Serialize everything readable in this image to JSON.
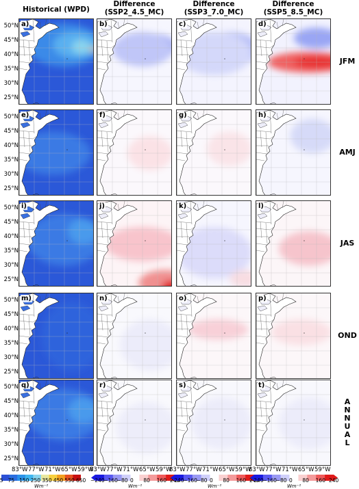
{
  "chart_data": {
    "type": "heatmap",
    "columns": [
      {
        "key": "hist",
        "title": "Historical (WPD)"
      },
      {
        "key": "s245",
        "title": "Difference\n(SSP2_4.5_MC)"
      },
      {
        "key": "s370",
        "title": "Difference\n(SSP3_7.0_MC)"
      },
      {
        "key": "s585",
        "title": "Difference\n(SSP5_8.5_MC)"
      }
    ],
    "rows": [
      {
        "season": "JFM",
        "labels": [
          "a)",
          "b)",
          "c)",
          "d)"
        ]
      },
      {
        "season": "AMJ",
        "labels": [
          "e)",
          "f)",
          "g)",
          "h)"
        ]
      },
      {
        "season": "JAS",
        "labels": [
          "i)",
          "j)",
          "k)",
          "l)"
        ]
      },
      {
        "season": "OND",
        "labels": [
          "m)",
          "n)",
          "o)",
          "p)"
        ]
      },
      {
        "season": "A\nN\nN\nU\nA\nL",
        "labels": [
          "q)",
          "r)",
          "s)",
          "t)"
        ]
      }
    ],
    "lat_ticks": [
      "50°N",
      "45°N",
      "40°N",
      "35°N",
      "30°N",
      "25°N"
    ],
    "lon_ticks": [
      "83°W",
      "77°W",
      "71°W",
      "65°W",
      "59°W"
    ],
    "colorbars": [
      {
        "ticks": [
          "25",
          "75",
          "150",
          "250",
          "350",
          "450",
          "550",
          "650"
        ],
        "unit": "Wm⁻²",
        "colors": [
          "#2b50d6",
          "#2a6ee0",
          "#2a92e8",
          "#40b6f0",
          "#8ad4ee",
          "#e8e8a0",
          "#f8d040",
          "#f4a020",
          "#e85020",
          "#c81010"
        ]
      },
      {
        "ticks": [
          "−240",
          "−160",
          "−80",
          "0",
          "80",
          "160",
          "240"
        ],
        "unit": "Wm⁻²",
        "colors": [
          "#1a1ae0",
          "#5a5af0",
          "#9a9af4",
          "#d0d0fa",
          "#ffffff",
          "#fad0d0",
          "#f49a9a",
          "#f05a5a",
          "#e01a1a"
        ]
      },
      {
        "ticks": [
          "−240",
          "−160",
          "−80",
          "0",
          "80",
          "160",
          "240"
        ],
        "unit": "Wm⁻²",
        "colors": [
          "#1a1ae0",
          "#5a5af0",
          "#9a9af4",
          "#d0d0fa",
          "#ffffff",
          "#fad0d0",
          "#f49a9a",
          "#f05a5a",
          "#e01a1a"
        ]
      },
      {
        "ticks": [
          "−240",
          "−160",
          "−80",
          "0",
          "80",
          "160",
          "240"
        ],
        "unit": "Wm⁻²",
        "colors": [
          "#1a1ae0",
          "#5a5af0",
          "#9a9af4",
          "#d0d0fa",
          "#ffffff",
          "#fad0d0",
          "#f49a9a",
          "#f05a5a",
          "#e01a1a"
        ]
      }
    ],
    "fields": {
      "hist": [
        {
          "base": "#2b58d8",
          "blobs": [
            {
              "c": "#3a8ae8",
              "x": 0.6,
              "y": 0.3,
              "rx": 0.5,
              "ry": 0.25
            },
            {
              "c": "#5ab0f0",
              "x": 0.75,
              "y": 0.3,
              "rx": 0.3,
              "ry": 0.15
            },
            {
              "c": "#8ad4ee",
              "x": 0.82,
              "y": 0.32,
              "rx": 0.12,
              "ry": 0.08
            },
            {
              "c": "#f8d040",
              "x": 0.97,
              "y": 0.35,
              "rx": 0.03,
              "ry": 0.03
            }
          ]
        },
        {
          "base": "#2b58d8",
          "blobs": [
            {
              "c": "#3a7ae4",
              "x": 0.45,
              "y": 0.5,
              "rx": 0.5,
              "ry": 0.25
            }
          ]
        },
        {
          "base": "#2b58d8",
          "blobs": [
            {
              "c": "#3a7ae4",
              "x": 0.6,
              "y": 0.45,
              "rx": 0.5,
              "ry": 0.3
            },
            {
              "c": "#4a9aec",
              "x": 0.85,
              "y": 0.35,
              "rx": 0.2,
              "ry": 0.15
            }
          ]
        },
        {
          "base": "#2b58d8",
          "blobs": [
            {
              "c": "#2f64dc",
              "x": 0.7,
              "y": 0.5,
              "rx": 0.4,
              "ry": 0.4
            }
          ]
        },
        {
          "base": "#2b58d8",
          "blobs": [
            {
              "c": "#3a7ae4",
              "x": 0.6,
              "y": 0.4,
              "rx": 0.5,
              "ry": 0.3
            },
            {
              "c": "#4a9aec",
              "x": 0.85,
              "y": 0.35,
              "rx": 0.2,
              "ry": 0.15
            }
          ]
        }
      ],
      "s245": [
        {
          "base": "#f6f6fe",
          "blobs": [
            {
              "c": "#9aa4f4",
              "x": 0.75,
              "y": 0.32,
              "rx": 0.3,
              "ry": 0.15
            },
            {
              "c": "#c0c6f8",
              "x": 0.6,
              "y": 0.35,
              "rx": 0.4,
              "ry": 0.2
            }
          ]
        },
        {
          "base": "#fbf8fc",
          "blobs": [
            {
              "c": "#fbe2e6",
              "x": 0.7,
              "y": 0.5,
              "rx": 0.3,
              "ry": 0.2
            }
          ]
        },
        {
          "base": "#fdf4f6",
          "blobs": [
            {
              "c": "#f8c4cc",
              "x": 0.6,
              "y": 0.5,
              "rx": 0.5,
              "ry": 0.2
            },
            {
              "c": "#f09090",
              "x": 0.9,
              "y": 0.95,
              "rx": 0.35,
              "ry": 0.15
            },
            {
              "c": "#e02020",
              "x": 1.0,
              "y": 1.0,
              "rx": 0.15,
              "ry": 0.08
            }
          ]
        },
        {
          "base": "#f9f9fd",
          "blobs": [
            {
              "c": "#ececfa",
              "x": 0.7,
              "y": 0.6,
              "rx": 0.4,
              "ry": 0.3
            }
          ]
        },
        {
          "base": "#f9f9fd",
          "blobs": [
            {
              "c": "#ededfa",
              "x": 0.65,
              "y": 0.55,
              "rx": 0.4,
              "ry": 0.3
            }
          ]
        }
      ],
      "s370": [
        {
          "base": "#f4f4fe",
          "blobs": [
            {
              "c": "#b4bcf6",
              "x": 0.7,
              "y": 0.35,
              "rx": 0.4,
              "ry": 0.2
            },
            {
              "c": "#d4d8fa",
              "x": 0.5,
              "y": 0.4,
              "rx": 0.5,
              "ry": 0.25
            }
          ]
        },
        {
          "base": "#fbf8fc",
          "blobs": [
            {
              "c": "#fae4e8",
              "x": 0.7,
              "y": 0.45,
              "rx": 0.3,
              "ry": 0.2
            }
          ]
        },
        {
          "base": "#f6f6fe",
          "blobs": [
            {
              "c": "#dcdcfa",
              "x": 0.5,
              "y": 0.6,
              "rx": 0.5,
              "ry": 0.3
            },
            {
              "c": "#f8dde2",
              "x": 0.9,
              "y": 0.9,
              "rx": 0.2,
              "ry": 0.1
            }
          ]
        },
        {
          "base": "#fcf7f9",
          "blobs": [
            {
              "c": "#f8d0d8",
              "x": 0.55,
              "y": 0.42,
              "rx": 0.4,
              "ry": 0.12
            }
          ]
        },
        {
          "base": "#f8f8fd",
          "blobs": [
            {
              "c": "#ececfa",
              "x": 0.6,
              "y": 0.5,
              "rx": 0.4,
              "ry": 0.3
            }
          ]
        }
      ],
      "s585": [
        {
          "base": "#f2f2fe",
          "blobs": [
            {
              "c": "#9aa6f4",
              "x": 0.8,
              "y": 0.22,
              "rx": 0.3,
              "ry": 0.12
            },
            {
              "c": "#f06060",
              "x": 0.7,
              "y": 0.5,
              "rx": 0.55,
              "ry": 0.12
            },
            {
              "c": "#e83030",
              "x": 0.8,
              "y": 0.5,
              "rx": 0.3,
              "ry": 0.07
            }
          ]
        },
        {
          "base": "#f6f6fe",
          "blobs": [
            {
              "c": "#d6daf8",
              "x": 0.75,
              "y": 0.3,
              "rx": 0.3,
              "ry": 0.2
            }
          ]
        },
        {
          "base": "#fcf6f8",
          "blobs": [
            {
              "c": "#f6c4cc",
              "x": 0.7,
              "y": 0.55,
              "rx": 0.4,
              "ry": 0.2
            }
          ]
        },
        {
          "base": "#fcf7f9",
          "blobs": [
            {
              "c": "#fae0e4",
              "x": 0.6,
              "y": 0.45,
              "rx": 0.4,
              "ry": 0.15
            }
          ]
        },
        {
          "base": "#f8f8fd",
          "blobs": [
            {
              "c": "#ececfa",
              "x": 0.7,
              "y": 0.5,
              "rx": 0.4,
              "ry": 0.3
            }
          ]
        }
      ]
    }
  }
}
